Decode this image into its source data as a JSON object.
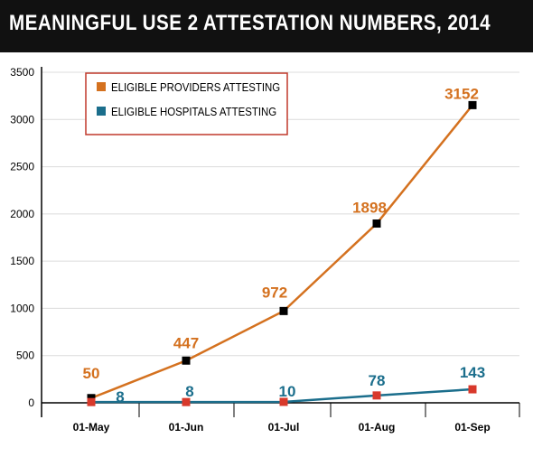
{
  "title": "MEANINGFUL USE 2 ATTESTATION NUMBERS, 2014",
  "chart_data": {
    "type": "line",
    "categories": [
      "01-May",
      "01-Jun",
      "01-Jul",
      "01-Aug",
      "01-Sep"
    ],
    "series": [
      {
        "name": "ELIGIBLE PROVIDERS ATTESTING",
        "values": [
          50,
          447,
          972,
          1898,
          3152
        ],
        "labels": [
          "50",
          "447",
          "972",
          "1898",
          "3152"
        ],
        "line_color": "#d4711f",
        "marker_color": "#000000"
      },
      {
        "name": "ELIGIBLE HOSPITALS ATTESTING",
        "values": [
          8,
          8,
          10,
          78,
          143
        ],
        "labels": [
          "8",
          "8",
          "10",
          "78",
          "143"
        ],
        "line_color": "#1b6e8c",
        "marker_color": "#d8392b"
      }
    ],
    "yticks": [
      "0",
      "500",
      "1000",
      "1500",
      "2000",
      "2500",
      "3000",
      "3500"
    ],
    "ylim": [
      0,
      3500
    ],
    "grid": true,
    "legend_position": "top-left",
    "legend_border_color": "#c0392b",
    "label_colors": {
      "providers": "#d4711f",
      "hospitals": "#1b6e8c"
    }
  }
}
